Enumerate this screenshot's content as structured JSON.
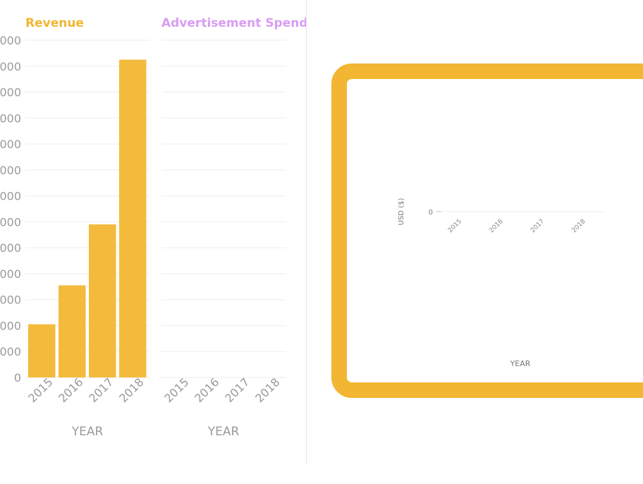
{
  "colors": {
    "revenue": "#f2b632",
    "ad_spend": "#d99cf4",
    "grid": "#eeeeee",
    "axis_text": "#9a9a9a",
    "frame": "#f2b632"
  },
  "chart_data": [
    {
      "type": "bar",
      "title": "Revenue",
      "categories": [
        "2015",
        "2016",
        "2017",
        "2018"
      ],
      "values": [
        2050,
        3550,
        5900,
        12250
      ],
      "xlabel": "YEAR",
      "ylabel": "",
      "ylim": [
        0,
        13000
      ],
      "ytick_labels": [
        "0",
        "000",
        "000",
        "000",
        "000",
        "000",
        "000",
        "000",
        "000",
        "000",
        "000",
        "000",
        "000",
        "000"
      ],
      "grid": true
    },
    {
      "type": "bar",
      "title": "Advertisement Spend",
      "categories": [
        "2015",
        "2016",
        "2017",
        "2018"
      ],
      "values": [
        0,
        0,
        0,
        0
      ],
      "xlabel": "YEAR",
      "ylabel": "",
      "ylim": [
        0,
        13000
      ],
      "grid": true
    },
    {
      "type": "line",
      "title": "",
      "categories": [
        "2015",
        "2016",
        "2017",
        "2018"
      ],
      "values": [
        0,
        0,
        0,
        0
      ],
      "xlabel": "YEAR",
      "ylabel": "USD ($)",
      "ytick_labels": [
        "0"
      ],
      "grid": true
    }
  ]
}
